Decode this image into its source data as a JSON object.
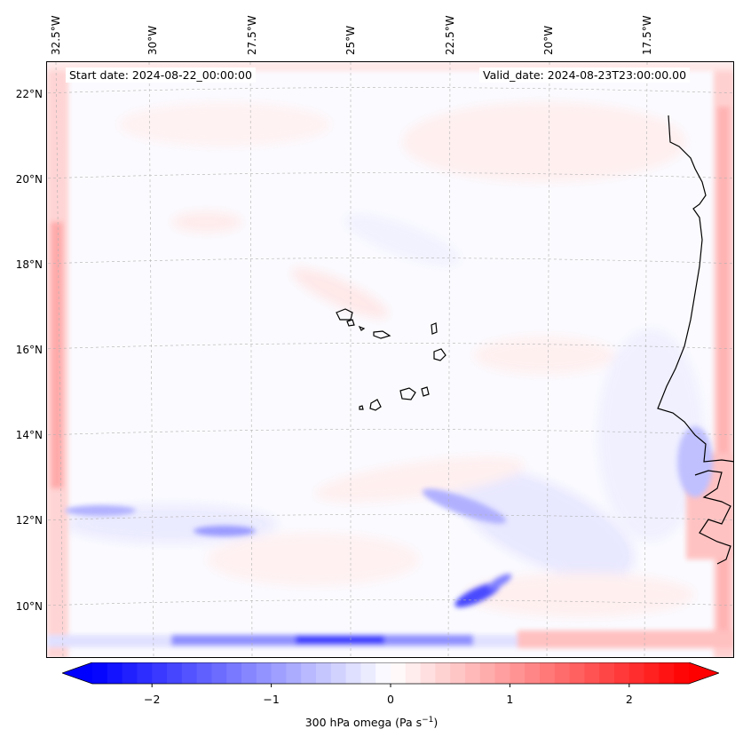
{
  "map": {
    "start_date": "Start date: 2024-08-22_00:00:00",
    "valid_date": "Valid_date: 2024-08-23T23:00:00.00",
    "lon_labels": [
      "32.5°W",
      "30°W",
      "27.5°W",
      "25°W",
      "22.5°W",
      "20°W",
      "17.5°W"
    ],
    "lat_labels": [
      "22°N",
      "20°N",
      "18°N",
      "16°N",
      "14°N",
      "12°N",
      "10°N"
    ],
    "field": "300 hPa omega",
    "colormap": "bwr",
    "colors": {
      "negative": "#0000ff",
      "neutral": "#ffffff",
      "positive": "#ff0000",
      "coastline": "#000000",
      "grid": "#b0b0b0"
    }
  },
  "colorbar": {
    "ticks": [
      "−2",
      "−1",
      "0",
      "1",
      "2"
    ],
    "tick_values": [
      -2,
      -1,
      0,
      1,
      2
    ],
    "range": [
      -2.5,
      2.5
    ],
    "extend": "both",
    "label_main": "300 hPa omega (Pa s",
    "label_sup": "−1",
    "label_end": ")"
  }
}
